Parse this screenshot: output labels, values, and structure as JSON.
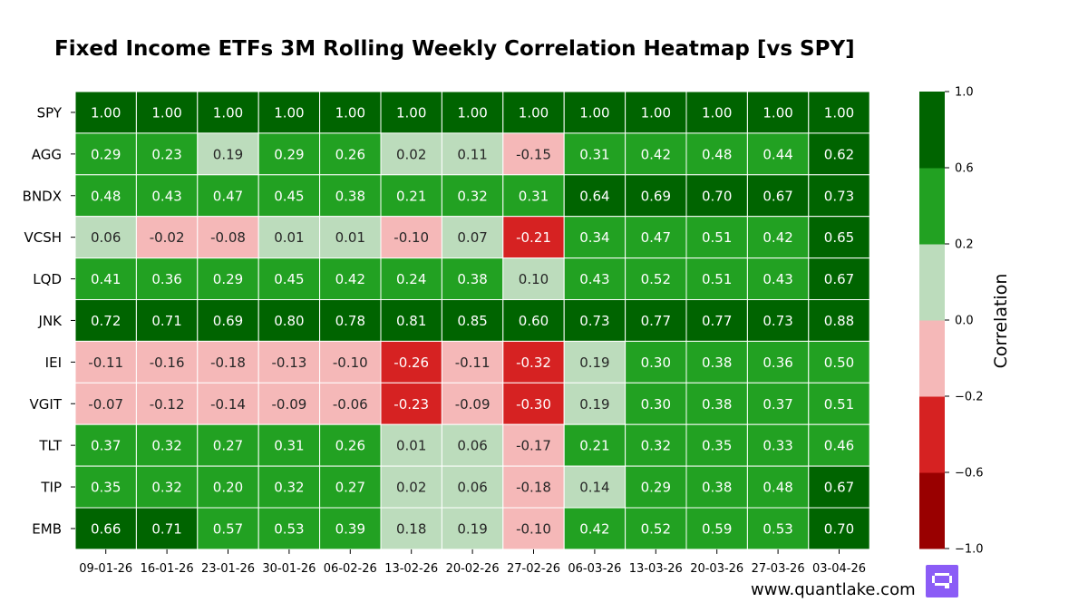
{
  "chart_data": {
    "type": "heatmap",
    "title": "Fixed Income ETFs 3M Rolling Weekly Correlation Heatmap [vs SPY]",
    "rows": [
      "SPY",
      "AGG",
      "BNDX",
      "VCSH",
      "LQD",
      "JNK",
      "IEI",
      "VGIT",
      "TLT",
      "TIP",
      "EMB"
    ],
    "columns": [
      "09-01-26",
      "16-01-26",
      "23-01-26",
      "30-01-26",
      "06-02-26",
      "13-02-26",
      "20-02-26",
      "27-02-26",
      "06-03-26",
      "13-03-26",
      "20-03-26",
      "27-03-26",
      "03-04-26"
    ],
    "values": [
      [
        "1.00",
        "1.00",
        "1.00",
        "1.00",
        "1.00",
        "1.00",
        "1.00",
        "1.00",
        "1.00",
        "1.00",
        "1.00",
        "1.00",
        "1.00"
      ],
      [
        "0.29",
        "0.23",
        "0.19",
        "0.29",
        "0.26",
        "0.02",
        "0.11",
        "-0.15",
        "0.31",
        "0.42",
        "0.48",
        "0.44",
        "0.62"
      ],
      [
        "0.48",
        "0.43",
        "0.47",
        "0.45",
        "0.38",
        "0.21",
        "0.32",
        "0.31",
        "0.64",
        "0.69",
        "0.70",
        "0.67",
        "0.73"
      ],
      [
        "0.06",
        "-0.02",
        "-0.08",
        "0.01",
        "0.01",
        "-0.10",
        "0.07",
        "-0.21",
        "0.34",
        "0.47",
        "0.51",
        "0.42",
        "0.65"
      ],
      [
        "0.41",
        "0.36",
        "0.29",
        "0.45",
        "0.42",
        "0.24",
        "0.38",
        "0.10",
        "0.43",
        "0.52",
        "0.51",
        "0.43",
        "0.67"
      ],
      [
        "0.72",
        "0.71",
        "0.69",
        "0.80",
        "0.78",
        "0.81",
        "0.85",
        "0.60",
        "0.73",
        "0.77",
        "0.77",
        "0.73",
        "0.88"
      ],
      [
        "-0.11",
        "-0.16",
        "-0.18",
        "-0.13",
        "-0.10",
        "-0.26",
        "-0.11",
        "-0.32",
        "0.19",
        "0.30",
        "0.38",
        "0.36",
        "0.50"
      ],
      [
        "-0.07",
        "-0.12",
        "-0.14",
        "-0.09",
        "-0.06",
        "-0.23",
        "-0.09",
        "-0.30",
        "0.19",
        "0.30",
        "0.38",
        "0.37",
        "0.51"
      ],
      [
        "0.37",
        "0.32",
        "0.27",
        "0.31",
        "0.26",
        "0.01",
        "0.06",
        "-0.17",
        "0.21",
        "0.32",
        "0.35",
        "0.33",
        "0.46"
      ],
      [
        "0.35",
        "0.32",
        "0.20",
        "0.32",
        "0.27",
        "0.02",
        "0.06",
        "-0.18",
        "0.14",
        "0.29",
        "0.38",
        "0.48",
        "0.67"
      ],
      [
        "0.66",
        "0.71",
        "0.57",
        "0.53",
        "0.39",
        "0.18",
        "0.19",
        "-0.10",
        "0.42",
        "0.52",
        "0.59",
        "0.53",
        "0.70"
      ]
    ],
    "colorbar": {
      "label": "Correlation",
      "bounds": [
        -1.0,
        -0.6,
        -0.2,
        0.0,
        0.2,
        0.6,
        1.0
      ],
      "colors": [
        "#990000",
        "#d62222",
        "#f5b8b8",
        "#bcdcbc",
        "#22a122",
        "#006400"
      ],
      "text_colors": [
        "#ffffff",
        "#ffffff",
        "#262626",
        "#262626",
        "#ffffff",
        "#ffffff"
      ],
      "tick_labels": [
        "−1.0",
        "−0.6",
        "−0.2",
        "0.0",
        "0.2",
        "0.6",
        "1.0"
      ]
    }
  },
  "footer": {
    "website": "www.quantlake.com",
    "logo_color": "#8b5cf6"
  }
}
